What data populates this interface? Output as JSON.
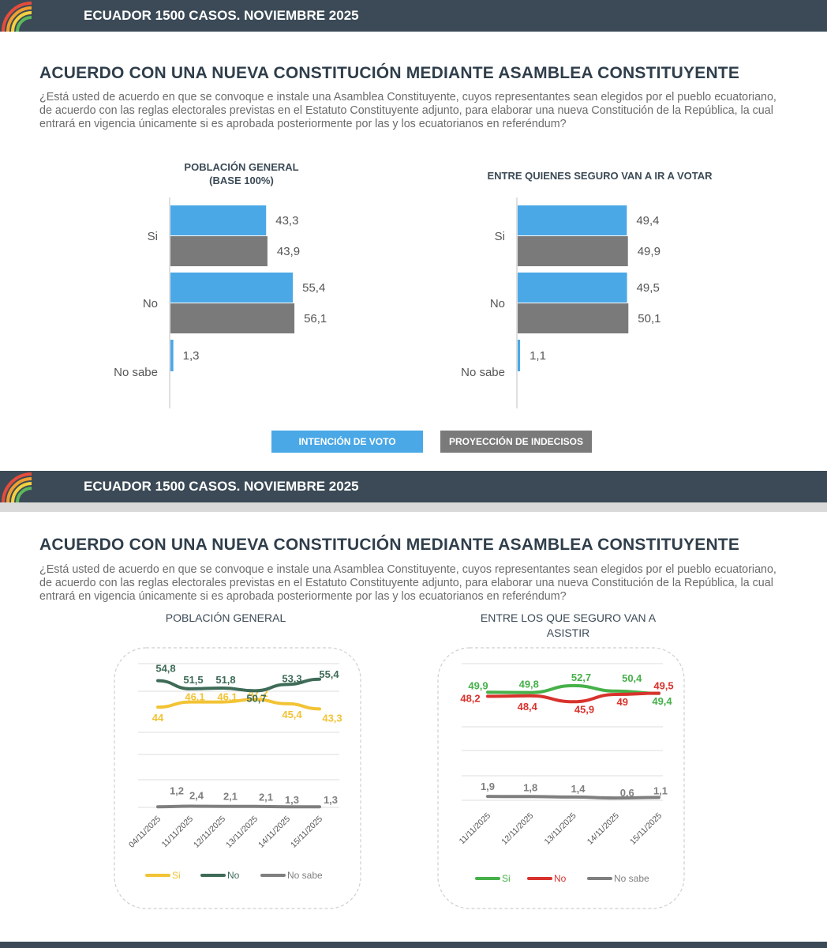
{
  "header": {
    "title": "ECUADOR 1500 CASOS. NOVIEMBRE 2025"
  },
  "slide1": {
    "title": "ACUERDO CON UNA NUEVA CONSTITUCIÓN MEDIANTE ASAMBLEA CONSTITUYENTE",
    "question": "¿Está usted de acuerdo en que se convoque e instale una Asamblea Constituyente, cuyos representantes sean elegidos por el pueblo ecuatoriano, de acuerdo con las reglas electorales previstas en el Estatuto Constituyente adjunto, para elaborar una nueva Constitución de la República, la cual entrará en vigencia únicamente si es aprobada posteriormente por las y los ecuatorianos en referéndum?",
    "chart_left_title_1": "POBLACIÓN GENERAL",
    "chart_left_title_2": "(BASE 100%)",
    "chart_right_title": "ENTRE QUIENES SEGURO VAN A IR A VOTAR",
    "legend_intencion": "INTENCIÓN DE VOTO",
    "legend_proyeccion": "PROYECCIÓN DE INDECISOS"
  },
  "slide2": {
    "title": "ACUERDO CON UNA NUEVA CONSTITUCIÓN MEDIANTE ASAMBLEA CONSTITUYENTE",
    "question": "¿Está usted de acuerdo en que se convoque e instale una Asamblea Constituyente, cuyos representantes sean elegidos por el pueblo ecuatoriano, de acuerdo con las reglas electorales previstas en el Estatuto Constituyente adjunto, para elaborar una nueva Constitución de la República, la cual entrará en vigencia únicamente si es aprobada posteriormente por las y los ecuatorianos en referéndum?",
    "chart_left_title": "POBLACIÓN GENERAL",
    "chart_right_title_1": "ENTRE LOS QUE SEGURO VAN A",
    "chart_right_title_2": "ASISTIR"
  },
  "colors": {
    "band": "#3b4a56",
    "intencion": "#4aa8e6",
    "proyeccion": "#7a7a7a",
    "si_left": "#f2c335",
    "no_left": "#3e6b57",
    "nosabe": "#7f7f7f",
    "si_right": "#46b049",
    "no_right": "#d8322c"
  },
  "chart_data": [
    {
      "type": "bar",
      "categories": [
        "Si",
        "No",
        "No sabe"
      ],
      "series": [
        {
          "name": "INTENCIÓN DE VOTO",
          "values": [
            43.3,
            55.4,
            1.3
          ],
          "labels": [
            "43,3",
            "55,4",
            "1,3"
          ]
        },
        {
          "name": "PROYECCIÓN DE INDECISOS",
          "values": [
            43.9,
            56.1,
            null
          ],
          "labels": [
            "43,9",
            "56,1",
            ""
          ]
        }
      ],
      "title": "POBLACIÓN GENERAL (BASE 100%)",
      "orientation": "horizontal"
    },
    {
      "type": "bar",
      "categories": [
        "Si",
        "No",
        "No sabe"
      ],
      "series": [
        {
          "name": "INTENCIÓN DE VOTO",
          "values": [
            49.4,
            49.5,
            1.1
          ],
          "labels": [
            "49,4",
            "49,5",
            "1,1"
          ]
        },
        {
          "name": "PROYECCIÓN DE INDECISOS",
          "values": [
            49.9,
            50.1,
            null
          ],
          "labels": [
            "49,9",
            "50,1",
            ""
          ]
        }
      ],
      "title": "ENTRE QUIENES SEGURO VAN A IR A VOTAR",
      "orientation": "horizontal"
    },
    {
      "type": "line",
      "x": [
        "04/11/2025",
        "11/11/2025",
        "12/11/2025",
        "13/11/2025",
        "14/11/2025",
        "15/11/2025"
      ],
      "series": [
        {
          "name": "Si",
          "values": [
            44,
            46.1,
            46.1,
            47.2,
            45.4,
            43.3
          ],
          "labels": [
            "44",
            "46,1",
            "46,1",
            "47,2",
            "45,4",
            "43,3"
          ]
        },
        {
          "name": "No",
          "values": [
            54.8,
            51.5,
            51.8,
            50.7,
            53.3,
            55.4
          ],
          "labels": [
            "54,8",
            "51,5",
            "51,8",
            "50,7",
            "53,3",
            "55,4"
          ]
        },
        {
          "name": "No sabe",
          "values": [
            1.2,
            2.4,
            2.1,
            2.1,
            1.3,
            1.3
          ],
          "labels": [
            "1,2",
            "2,4",
            "2,1",
            "2,1",
            "1,3",
            "1,3"
          ]
        }
      ],
      "title": "POBLACIÓN GENERAL",
      "grid": true
    },
    {
      "type": "line",
      "x": [
        "11/11/2025",
        "12/11/2025",
        "13/11/2025",
        "14/11/2025",
        "15/11/2025"
      ],
      "series": [
        {
          "name": "Si",
          "values": [
            49.9,
            49.8,
            52.7,
            50.4,
            49.4
          ],
          "labels": [
            "49,9",
            "49,8",
            "52,7",
            "50,4",
            "49,4"
          ]
        },
        {
          "name": "No",
          "values": [
            48.2,
            48.4,
            45.9,
            49,
            49.5
          ],
          "labels": [
            "48,2",
            "48,4",
            "45,9",
            "49",
            "49,5"
          ]
        },
        {
          "name": "No sabe",
          "values": [
            1.9,
            1.8,
            1.4,
            0.6,
            1.1
          ],
          "labels": [
            "1,9",
            "1,8",
            "1,4",
            "0,6",
            "1,1"
          ]
        }
      ],
      "title": "ENTRE LOS QUE SEGURO VAN A ASISTIR",
      "grid": true
    }
  ]
}
